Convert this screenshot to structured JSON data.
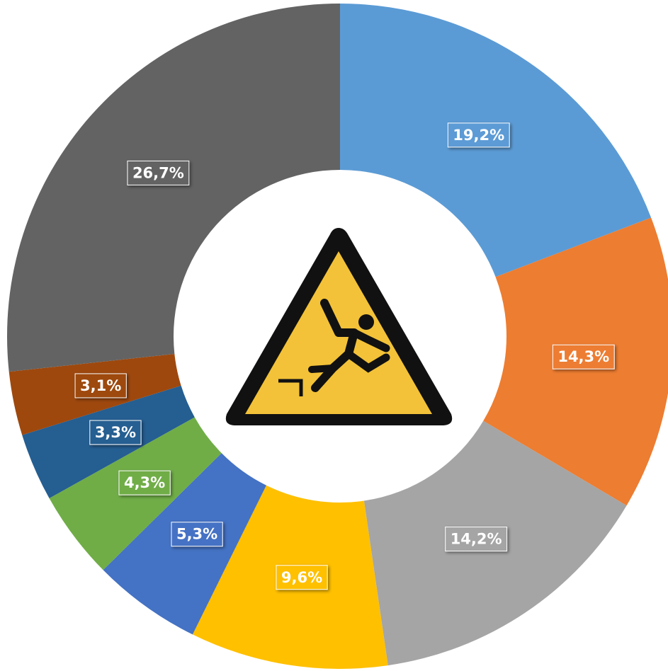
{
  "chart_data": {
    "type": "pie",
    "values": [
      19.2,
      14.3,
      14.2,
      9.6,
      5.3,
      4.3,
      3.3,
      3.1,
      26.7
    ],
    "value_labels": [
      "19,2%",
      "14,3%",
      "14,2%",
      "9,6%",
      "5,3%",
      "4,3%",
      "3,3%",
      "3,1%",
      "26,7%"
    ],
    "colors": [
      "#5b9bd5",
      "#ed7d31",
      "#a5a5a5",
      "#ffc000",
      "#4472c4",
      "#70ad47",
      "#255e91",
      "#9e480e",
      "#636363"
    ]
  }
}
